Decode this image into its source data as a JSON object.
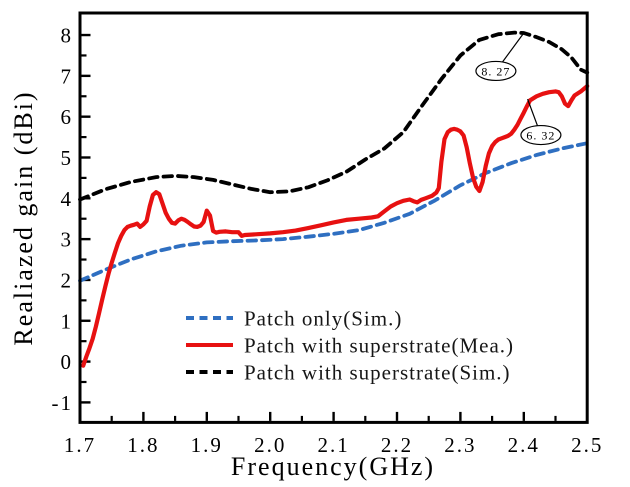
{
  "chart_data": {
    "type": "line",
    "title": "",
    "xlabel": "Frequency(GHz)",
    "ylabel": "Realiazed gain (dBi)",
    "xlim": [
      1.7,
      2.5
    ],
    "ylim": [
      -1.49,
      8.54
    ],
    "grid": false,
    "legend_position": "inside-bottom-center",
    "axes_color": "#000000",
    "x_ticks_major": [
      1.7,
      1.8,
      1.9,
      2.0,
      2.1,
      2.2,
      2.3,
      2.4,
      2.5
    ],
    "x_tick_labels": [
      "1.7",
      "1.8",
      "1.9",
      "2.0",
      "2.1",
      "2.2",
      "2.3",
      "2.4",
      "2.5"
    ],
    "x_ticks_minor": [
      1.75,
      1.85,
      1.95,
      2.05,
      2.15,
      2.25,
      2.35,
      2.45
    ],
    "y_ticks_major": [
      -1,
      0,
      1,
      2,
      3,
      4,
      5,
      6,
      7,
      8
    ],
    "y_tick_labels": [
      "-1",
      "0",
      "1",
      "2",
      "3",
      "4",
      "5",
      "6",
      "7",
      "8"
    ],
    "y_ticks_minor": [
      -0.5,
      0.5,
      1.5,
      2.5,
      3.5,
      4.5,
      5.5,
      6.5,
      7.5
    ],
    "series": [
      {
        "name": "Patch only(Sim.)",
        "color": "#2f6fc1",
        "style": "dashed",
        "points": [
          [
            1.7,
            1.98
          ],
          [
            1.74,
            2.25
          ],
          [
            1.78,
            2.5
          ],
          [
            1.82,
            2.7
          ],
          [
            1.86,
            2.84
          ],
          [
            1.9,
            2.92
          ],
          [
            1.94,
            2.95
          ],
          [
            1.98,
            2.97
          ],
          [
            2.02,
            3.0
          ],
          [
            2.06,
            3.06
          ],
          [
            2.1,
            3.13
          ],
          [
            2.14,
            3.22
          ],
          [
            2.18,
            3.4
          ],
          [
            2.22,
            3.62
          ],
          [
            2.26,
            3.95
          ],
          [
            2.3,
            4.32
          ],
          [
            2.34,
            4.62
          ],
          [
            2.38,
            4.86
          ],
          [
            2.42,
            5.06
          ],
          [
            2.46,
            5.22
          ],
          [
            2.5,
            5.35
          ]
        ]
      },
      {
        "name": "Patch with superstrate(Mea.)",
        "color": "#e71111",
        "style": "solid",
        "points": [
          [
            1.705,
            -0.1
          ],
          [
            1.71,
            0.12
          ],
          [
            1.715,
            0.33
          ],
          [
            1.72,
            0.56
          ],
          [
            1.725,
            0.86
          ],
          [
            1.73,
            1.18
          ],
          [
            1.735,
            1.52
          ],
          [
            1.74,
            1.85
          ],
          [
            1.745,
            2.15
          ],
          [
            1.75,
            2.42
          ],
          [
            1.755,
            2.67
          ],
          [
            1.76,
            2.9
          ],
          [
            1.765,
            3.08
          ],
          [
            1.77,
            3.22
          ],
          [
            1.775,
            3.3
          ],
          [
            1.78,
            3.33
          ],
          [
            1.785,
            3.35
          ],
          [
            1.79,
            3.38
          ],
          [
            1.795,
            3.3
          ],
          [
            1.8,
            3.36
          ],
          [
            1.805,
            3.45
          ],
          [
            1.81,
            3.8
          ],
          [
            1.815,
            4.08
          ],
          [
            1.82,
            4.15
          ],
          [
            1.825,
            4.1
          ],
          [
            1.83,
            3.88
          ],
          [
            1.835,
            3.65
          ],
          [
            1.84,
            3.5
          ],
          [
            1.845,
            3.4
          ],
          [
            1.85,
            3.38
          ],
          [
            1.855,
            3.46
          ],
          [
            1.86,
            3.5
          ],
          [
            1.865,
            3.47
          ],
          [
            1.87,
            3.42
          ],
          [
            1.875,
            3.36
          ],
          [
            1.88,
            3.31
          ],
          [
            1.885,
            3.3
          ],
          [
            1.89,
            3.33
          ],
          [
            1.895,
            3.42
          ],
          [
            1.9,
            3.7
          ],
          [
            1.905,
            3.58
          ],
          [
            1.91,
            3.2
          ],
          [
            1.915,
            3.16
          ],
          [
            1.92,
            3.18
          ],
          [
            1.93,
            3.19
          ],
          [
            1.94,
            3.17
          ],
          [
            1.95,
            3.17
          ],
          [
            1.955,
            3.08
          ],
          [
            1.96,
            3.1
          ],
          [
            1.97,
            3.11
          ],
          [
            1.98,
            3.12
          ],
          [
            1.99,
            3.13
          ],
          [
            2.0,
            3.14
          ],
          [
            2.02,
            3.17
          ],
          [
            2.04,
            3.21
          ],
          [
            2.06,
            3.27
          ],
          [
            2.08,
            3.34
          ],
          [
            2.1,
            3.41
          ],
          [
            2.12,
            3.47
          ],
          [
            2.14,
            3.5
          ],
          [
            2.16,
            3.53
          ],
          [
            2.17,
            3.56
          ],
          [
            2.18,
            3.68
          ],
          [
            2.19,
            3.8
          ],
          [
            2.2,
            3.88
          ],
          [
            2.21,
            3.94
          ],
          [
            2.22,
            3.97
          ],
          [
            2.226,
            3.93
          ],
          [
            2.232,
            3.9
          ],
          [
            2.238,
            3.96
          ],
          [
            2.245,
            4.0
          ],
          [
            2.255,
            4.06
          ],
          [
            2.262,
            4.14
          ],
          [
            2.266,
            4.25
          ],
          [
            2.27,
            4.9
          ],
          [
            2.275,
            5.45
          ],
          [
            2.28,
            5.62
          ],
          [
            2.285,
            5.68
          ],
          [
            2.29,
            5.7
          ],
          [
            2.295,
            5.68
          ],
          [
            2.3,
            5.64
          ],
          [
            2.305,
            5.54
          ],
          [
            2.31,
            5.25
          ],
          [
            2.315,
            4.85
          ],
          [
            2.32,
            4.5
          ],
          [
            2.325,
            4.28
          ],
          [
            2.33,
            4.18
          ],
          [
            2.335,
            4.4
          ],
          [
            2.34,
            4.8
          ],
          [
            2.345,
            5.1
          ],
          [
            2.35,
            5.28
          ],
          [
            2.355,
            5.38
          ],
          [
            2.36,
            5.44
          ],
          [
            2.365,
            5.47
          ],
          [
            2.37,
            5.5
          ],
          [
            2.375,
            5.53
          ],
          [
            2.38,
            5.58
          ],
          [
            2.385,
            5.68
          ],
          [
            2.39,
            5.8
          ],
          [
            2.395,
            5.95
          ],
          [
            2.4,
            6.1
          ],
          [
            2.405,
            6.26
          ],
          [
            2.41,
            6.4
          ],
          [
            2.42,
            6.5
          ],
          [
            2.43,
            6.56
          ],
          [
            2.44,
            6.6
          ],
          [
            2.45,
            6.62
          ],
          [
            2.455,
            6.6
          ],
          [
            2.46,
            6.5
          ],
          [
            2.465,
            6.32
          ],
          [
            2.47,
            6.26
          ],
          [
            2.475,
            6.4
          ],
          [
            2.48,
            6.52
          ],
          [
            2.49,
            6.62
          ],
          [
            2.5,
            6.75
          ]
        ]
      },
      {
        "name": "Patch with superstrate(Sim.)",
        "color": "#000000",
        "style": "dashed",
        "points": [
          [
            1.7,
            3.97
          ],
          [
            1.74,
            4.22
          ],
          [
            1.78,
            4.4
          ],
          [
            1.82,
            4.52
          ],
          [
            1.85,
            4.55
          ],
          [
            1.88,
            4.52
          ],
          [
            1.91,
            4.45
          ],
          [
            1.94,
            4.34
          ],
          [
            1.97,
            4.23
          ],
          [
            2.0,
            4.15
          ],
          [
            2.03,
            4.17
          ],
          [
            2.06,
            4.27
          ],
          [
            2.09,
            4.44
          ],
          [
            2.12,
            4.65
          ],
          [
            2.15,
            4.95
          ],
          [
            2.18,
            5.22
          ],
          [
            2.21,
            5.62
          ],
          [
            2.24,
            6.28
          ],
          [
            2.27,
            6.92
          ],
          [
            2.3,
            7.5
          ],
          [
            2.33,
            7.88
          ],
          [
            2.36,
            8.02
          ],
          [
            2.385,
            8.06
          ],
          [
            2.4,
            8.05
          ],
          [
            2.42,
            7.95
          ],
          [
            2.44,
            7.83
          ],
          [
            2.46,
            7.65
          ],
          [
            2.475,
            7.45
          ],
          [
            2.49,
            7.15
          ],
          [
            2.5,
            7.08
          ]
        ]
      }
    ],
    "annotations": [
      {
        "label": "8. 27",
        "ellipse_center": [
          2.356,
          7.12
        ],
        "target": [
          2.4,
          8.05
        ]
      },
      {
        "label": "6. 32",
        "ellipse_center": [
          2.427,
          5.55
        ],
        "target": [
          2.406,
          6.43
        ]
      }
    ]
  },
  "legend": {
    "items": [
      {
        "label": "Patch only(Sim.)"
      },
      {
        "label": "Patch with superstrate(Mea.)"
      },
      {
        "label": "Patch with superstrate(Sim.)"
      }
    ]
  }
}
